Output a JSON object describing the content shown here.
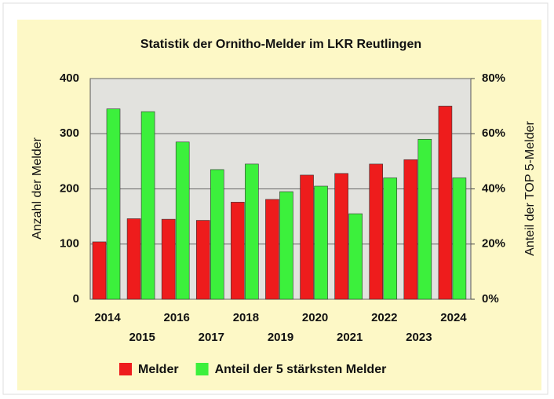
{
  "chart_data": {
    "type": "bar",
    "title": "Statistik der Ornitho-Melder im LKR Reutlingen",
    "y_label": "Anzahl der Melder",
    "y2_label": "Anteil der TOP 5-Melder",
    "categories": [
      "2014",
      "2015",
      "2016",
      "2017",
      "2018",
      "2019",
      "2020",
      "2021",
      "2022",
      "2023",
      "2024"
    ],
    "series": [
      {
        "name": "Melder",
        "color": "#ee1c1c",
        "values": [
          104,
          146,
          145,
          143,
          176,
          181,
          225,
          228,
          245,
          253,
          350
        ]
      },
      {
        "name": "Anteil der 5 stärksten Melder",
        "color": "#3cf03c",
        "axis": "y2",
        "values": [
          69,
          68,
          57,
          47,
          49,
          39,
          41,
          31,
          44,
          58,
          44
        ]
      }
    ],
    "ylim": [
      0,
      400
    ],
    "yticks": [
      0,
      100,
      200,
      300,
      400
    ],
    "y2lim": [
      0,
      80
    ],
    "y2ticks": [
      {
        "value": 0,
        "label": "0%"
      },
      {
        "value": 20,
        "label": "20%"
      },
      {
        "value": 40,
        "label": "40%"
      },
      {
        "value": 60,
        "label": "60%"
      },
      {
        "value": 80,
        "label": "80%"
      }
    ],
    "grid": true,
    "legend": "bottom"
  }
}
